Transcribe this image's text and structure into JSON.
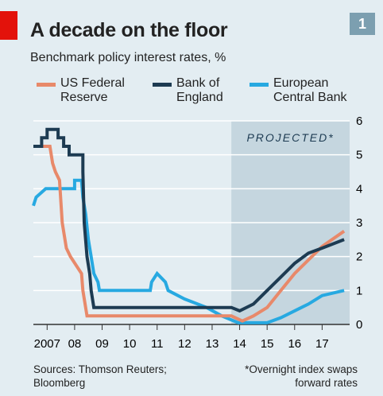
{
  "chart_data": {
    "type": "line",
    "title": "A decade on the floor",
    "subtitle": "Benchmark policy interest rates, %",
    "badge": "1",
    "annotation": "PROJECTED*",
    "projected_from": 2014.2,
    "sources": "Sources: Thomson Reuters; Bloomberg",
    "footnote": "*Overnight index swaps forward rates",
    "xlim": [
      2007,
      2018.5
    ],
    "xticks": [
      {
        "value": 2007.5,
        "label": "2007"
      },
      {
        "value": 2008.5,
        "label": "08"
      },
      {
        "value": 2009.5,
        "label": "09"
      },
      {
        "value": 2010.5,
        "label": "10"
      },
      {
        "value": 2011.5,
        "label": "11"
      },
      {
        "value": 2012.5,
        "label": "12"
      },
      {
        "value": 2013.5,
        "label": "13"
      },
      {
        "value": 2014.5,
        "label": "14"
      },
      {
        "value": 2015.5,
        "label": "15"
      },
      {
        "value": 2016.5,
        "label": "16"
      },
      {
        "value": 2017.5,
        "label": "17"
      }
    ],
    "ylim": [
      0,
      6
    ],
    "yticks": [
      0,
      1,
      2,
      3,
      4,
      5,
      6
    ],
    "grid": true,
    "series": [
      {
        "name": "US Federal Reserve",
        "color": "#e8896a",
        "x": [
          2007.0,
          2007.6,
          2007.7,
          2007.8,
          2007.95,
          2008.05,
          2008.2,
          2008.35,
          2008.75,
          2008.8,
          2008.95,
          2014.2,
          2014.6,
          2015.0,
          2015.5,
          2016.0,
          2016.5,
          2017.0,
          2017.5,
          2018.3
        ],
        "values": [
          5.25,
          5.25,
          4.75,
          4.5,
          4.25,
          3.0,
          2.25,
          2.0,
          1.5,
          1.0,
          0.25,
          0.25,
          0.1,
          0.25,
          0.5,
          1.0,
          1.5,
          1.9,
          2.3,
          2.75
        ]
      },
      {
        "name": "Bank of England",
        "color": "#1d3b52",
        "x": [
          2007.0,
          2007.3,
          2007.3,
          2007.5,
          2007.5,
          2007.9,
          2007.9,
          2008.1,
          2008.1,
          2008.3,
          2008.3,
          2008.8,
          2008.8,
          2008.85,
          2008.95,
          2009.05,
          2009.1,
          2009.2,
          2014.2,
          2014.5,
          2015.0,
          2015.5,
          2016.0,
          2016.5,
          2017.0,
          2017.5,
          2018.3
        ],
        "values": [
          5.25,
          5.25,
          5.5,
          5.5,
          5.75,
          5.75,
          5.5,
          5.5,
          5.25,
          5.25,
          5.0,
          5.0,
          4.5,
          3.0,
          2.0,
          1.5,
          1.0,
          0.5,
          0.5,
          0.4,
          0.6,
          1.0,
          1.4,
          1.8,
          2.1,
          2.25,
          2.5
        ]
      },
      {
        "name": "European Central Bank",
        "color": "#27a9e1",
        "x": [
          2007.0,
          2007.1,
          2007.45,
          2008.5,
          2008.5,
          2008.75,
          2008.8,
          2008.9,
          2009.0,
          2009.1,
          2009.2,
          2009.35,
          2009.4,
          2011.25,
          2011.3,
          2011.5,
          2011.8,
          2011.9,
          2012.5,
          2013.3,
          2013.85,
          2014.45,
          2015.5,
          2016.0,
          2016.5,
          2017.0,
          2017.5,
          2018.3
        ],
        "values": [
          3.5,
          3.75,
          4.0,
          4.0,
          4.25,
          4.25,
          3.75,
          3.25,
          2.5,
          2.0,
          1.5,
          1.25,
          1.0,
          1.0,
          1.25,
          1.5,
          1.25,
          1.0,
          0.75,
          0.5,
          0.25,
          0.05,
          0.05,
          0.2,
          0.4,
          0.6,
          0.85,
          1.0
        ]
      }
    ]
  }
}
